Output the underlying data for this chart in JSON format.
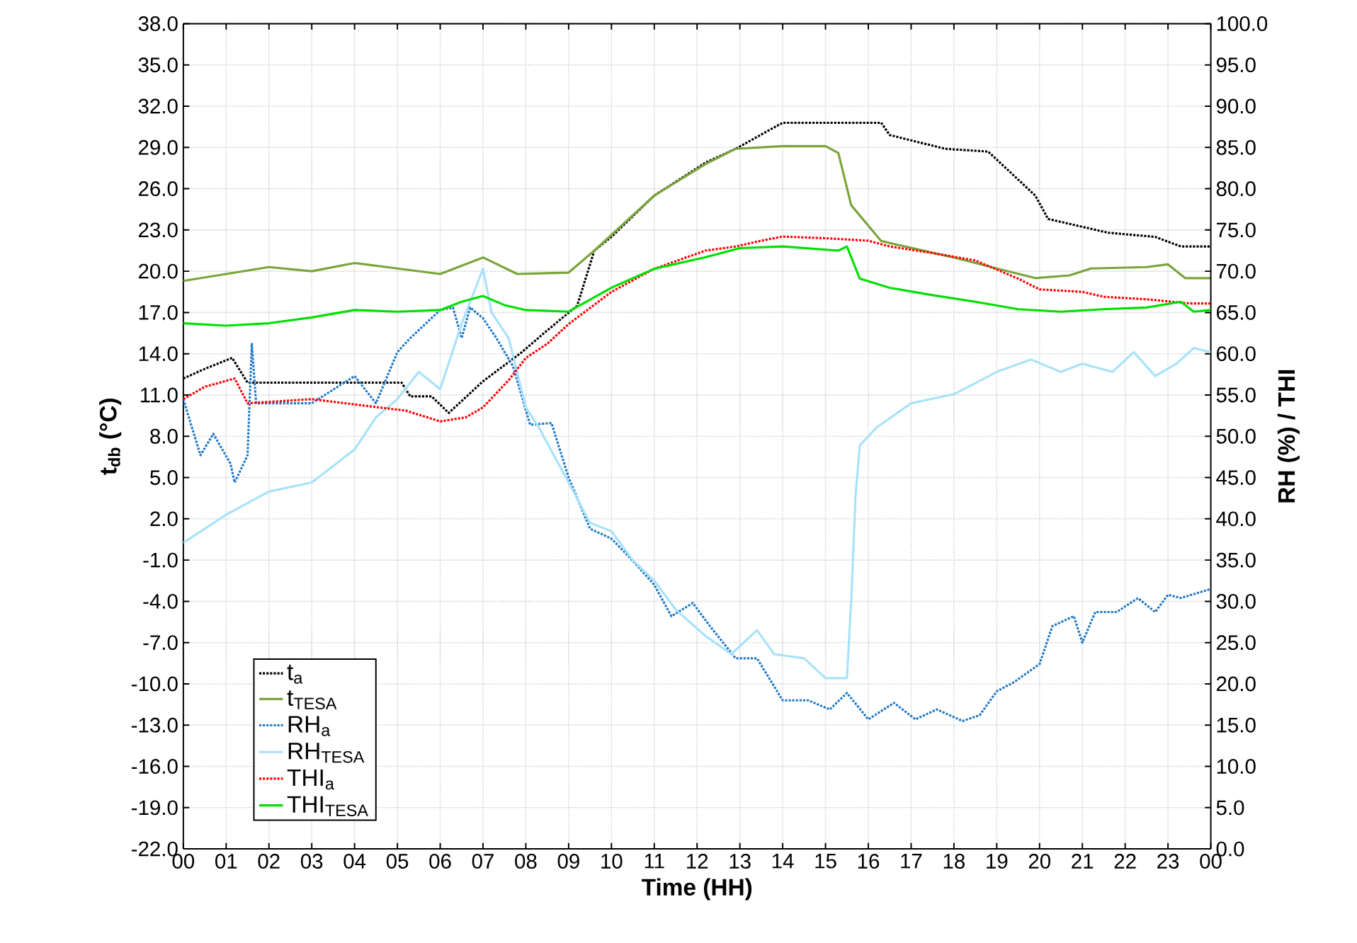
{
  "chart_data": {
    "type": "line",
    "xlabel": "Time (HH)",
    "ylabel": "t$_{db}$ (°C)",
    "y2label": "RH (%) / THI",
    "xlim": [
      0,
      24
    ],
    "xticks": [
      {
        "value": 0,
        "label": "00"
      },
      {
        "value": 1,
        "label": "01"
      },
      {
        "value": 2,
        "label": "02"
      },
      {
        "value": 3,
        "label": "03"
      },
      {
        "value": 4,
        "label": "04"
      },
      {
        "value": 5,
        "label": "05"
      },
      {
        "value": 6,
        "label": "06"
      },
      {
        "value": 7,
        "label": "07"
      },
      {
        "value": 8,
        "label": "08"
      },
      {
        "value": 9,
        "label": "09"
      },
      {
        "value": 10,
        "label": "10"
      },
      {
        "value": 11,
        "label": "11"
      },
      {
        "value": 12,
        "label": "12"
      },
      {
        "value": 13,
        "label": "13"
      },
      {
        "value": 14,
        "label": "14"
      },
      {
        "value": 15,
        "label": "15"
      },
      {
        "value": 16,
        "label": "16"
      },
      {
        "value": 17,
        "label": "17"
      },
      {
        "value": 18,
        "label": "18"
      },
      {
        "value": 19,
        "label": "19"
      },
      {
        "value": 20,
        "label": "20"
      },
      {
        "value": 21,
        "label": "21"
      },
      {
        "value": 22,
        "label": "22"
      },
      {
        "value": 23,
        "label": "23"
      },
      {
        "value": 24,
        "label": "00"
      }
    ],
    "ylim": [
      -22,
      38
    ],
    "yticks": [
      {
        "value": -22,
        "label": "-22.0"
      },
      {
        "value": -19,
        "label": "-19.0"
      },
      {
        "value": -16,
        "label": "-16.0"
      },
      {
        "value": -13,
        "label": "-13.0"
      },
      {
        "value": -10,
        "label": "-10.0"
      },
      {
        "value": -7,
        "label": "-7.0"
      },
      {
        "value": -4,
        "label": "-4.0"
      },
      {
        "value": -1,
        "label": "-1.0"
      },
      {
        "value": 2,
        "label": "2.0"
      },
      {
        "value": 5,
        "label": "5.0"
      },
      {
        "value": 8,
        "label": "8.0"
      },
      {
        "value": 11,
        "label": "11.0"
      },
      {
        "value": 14,
        "label": "14.0"
      },
      {
        "value": 17,
        "label": "17.0"
      },
      {
        "value": 20,
        "label": "20.0"
      },
      {
        "value": 23,
        "label": "23.0"
      },
      {
        "value": 26,
        "label": "26.0"
      },
      {
        "value": 29,
        "label": "29.0"
      },
      {
        "value": 32,
        "label": "32.0"
      },
      {
        "value": 35,
        "label": "35.0"
      },
      {
        "value": 38,
        "label": "38.0"
      }
    ],
    "y2lim": [
      0,
      100
    ],
    "y2ticks": [
      {
        "value": 0,
        "label": "0.0"
      },
      {
        "value": 5,
        "label": "5.0"
      },
      {
        "value": 10,
        "label": "10.0"
      },
      {
        "value": 15,
        "label": "15.0"
      },
      {
        "value": 20,
        "label": "20.0"
      },
      {
        "value": 25,
        "label": "25.0"
      },
      {
        "value": 30,
        "label": "30.0"
      },
      {
        "value": 35,
        "label": "35.0"
      },
      {
        "value": 40,
        "label": "40.0"
      },
      {
        "value": 45,
        "label": "45.0"
      },
      {
        "value": 50,
        "label": "50.0"
      },
      {
        "value": 55,
        "label": "55.0"
      },
      {
        "value": 60,
        "label": "60.0"
      },
      {
        "value": 65,
        "label": "65.0"
      },
      {
        "value": 70,
        "label": "70.0"
      },
      {
        "value": 75,
        "label": "75.0"
      },
      {
        "value": 80,
        "label": "80.0"
      },
      {
        "value": 85,
        "label": "85.0"
      },
      {
        "value": 90,
        "label": "90.0"
      },
      {
        "value": 95,
        "label": "95.0"
      },
      {
        "value": 100,
        "label": "100.0"
      }
    ],
    "grid": true,
    "legend": "bottom left",
    "marker": "none",
    "series": [
      {
        "name": "t$_{a}$",
        "color": "#000000",
        "line_style": "dotted",
        "x": [
          0,
          0.5,
          1.14,
          1.5,
          3,
          5.1,
          5.3,
          5.8,
          6.2,
          7.0,
          7.9,
          8.5,
          9.2,
          9.6,
          10,
          11,
          12.2,
          12.9,
          14,
          15.2,
          16.3,
          16.5,
          17.8,
          18.8,
          19.9,
          20.2,
          21.6,
          22.7,
          23.3,
          24
        ],
        "values": [
          12.2,
          12.9,
          13.7,
          11.9,
          11.9,
          11.9,
          10.9,
          10.9,
          9.7,
          12.0,
          14.1,
          15.7,
          17.5,
          21.5,
          22.5,
          25.5,
          27.9,
          28.9,
          30.8,
          30.8,
          30.8,
          29.9,
          28.9,
          28.7,
          25.5,
          23.8,
          22.8,
          22.5,
          21.8,
          21.8
        ]
      },
      {
        "name": "t$_{TESA}$",
        "color": "#7aa53a",
        "line_style": "solid",
        "x": [
          0,
          1,
          2,
          3,
          4,
          5,
          6,
          7,
          7.8,
          9,
          9.6,
          11,
          12.2,
          12.9,
          14,
          15,
          15.3,
          15.6,
          16.3,
          17,
          18,
          19,
          19.9,
          20.7,
          21.2,
          22.5,
          23,
          23.4,
          24
        ],
        "values": [
          19.3,
          19.8,
          20.3,
          20.0,
          20.6,
          20.2,
          19.8,
          21.0,
          19.8,
          19.9,
          21.5,
          25.5,
          27.8,
          28.9,
          29.1,
          29.1,
          28.6,
          24.8,
          22.2,
          21.7,
          21.0,
          20.2,
          19.5,
          19.7,
          20.2,
          20.3,
          20.5,
          19.5,
          19.5
        ]
      },
      {
        "name": "RH$_{a}$",
        "color": "#1f78c8",
        "line_style": "dotted",
        "axis": "y2",
        "x": [
          0,
          0.4,
          0.7,
          1.1,
          1.2,
          1.5,
          1.6,
          1.7,
          3,
          4,
          4.5,
          5,
          5.3,
          6,
          6.3,
          6.5,
          6.7,
          7.0,
          7.3,
          7.7,
          8.1,
          8.6,
          9,
          9.5,
          10,
          10.5,
          11,
          11.4,
          11.9,
          12.3,
          12.9,
          13.4,
          14,
          14.6,
          15.1,
          15.5,
          16,
          16.6,
          17.1,
          17.6,
          18.2,
          18.6,
          19,
          19.4,
          20,
          20.3,
          20.8,
          21,
          21.3,
          21.8,
          22.3,
          22.7,
          23,
          23.3,
          24
        ],
        "values": [
          54.5,
          47.7,
          50.3,
          46.7,
          44.4,
          47.7,
          61.2,
          54.0,
          54.0,
          57.3,
          54.0,
          60.2,
          61.9,
          65.3,
          65.6,
          61.9,
          65.6,
          64.3,
          62.0,
          58.5,
          51.4,
          51.6,
          45.0,
          38.8,
          37.6,
          34.9,
          32.0,
          28.2,
          29.8,
          27.0,
          23.1,
          23.1,
          18.0,
          18.0,
          16.9,
          18.9,
          15.7,
          17.7,
          15.7,
          16.9,
          15.5,
          16.2,
          19.1,
          20.2,
          22.4,
          27.0,
          28.2,
          25.0,
          28.7,
          28.7,
          30.4,
          28.7,
          30.8,
          30.4,
          31.5
        ]
      },
      {
        "name": "RH$_{TESA}$",
        "color": "#a8e2fa",
        "line_style": "solid",
        "axis": "y2",
        "x": [
          0,
          0.5,
          1,
          2,
          3,
          4,
          4.5,
          5,
          5.5,
          6,
          6.5,
          7,
          7.2,
          7.6,
          8,
          8.3,
          9,
          9.5,
          10,
          10.5,
          11,
          11.5,
          12.2,
          12.8,
          13.4,
          13.8,
          14.5,
          15,
          15.5,
          15.6,
          15.7,
          15.8,
          16.2,
          17,
          18,
          19,
          19.8,
          20.5,
          21,
          21.7,
          22.2,
          22.7,
          23.2,
          23.6,
          24
        ],
        "values": [
          37.1,
          38.8,
          40.5,
          43.3,
          44.4,
          48.4,
          52.3,
          54.5,
          57.8,
          55.7,
          63.6,
          70.3,
          65.0,
          61.9,
          53.5,
          51.1,
          44.4,
          39.5,
          38.5,
          35.0,
          32.5,
          29.0,
          25.8,
          23.6,
          26.5,
          23.6,
          23.1,
          20.7,
          20.7,
          30.0,
          42.6,
          48.9,
          51.1,
          54.0,
          55.1,
          57.8,
          59.3,
          57.8,
          58.8,
          57.8,
          60.2,
          57.3,
          58.8,
          60.7,
          60.2
        ]
      },
      {
        "name": "THI$_{a}$",
        "color": "#ff0000",
        "line_style": "dotted",
        "axis": "y2",
        "x": [
          0,
          0.5,
          1.2,
          1.5,
          3,
          5.2,
          6,
          6.6,
          7,
          7.6,
          8,
          8.5,
          9,
          10,
          11,
          12.2,
          12.9,
          13.5,
          14,
          15,
          16,
          16.5,
          17.5,
          18.5,
          19.5,
          20,
          21,
          21.5,
          22.5,
          23.5,
          24
        ],
        "values": [
          54.5,
          56.0,
          57.0,
          54.0,
          54.5,
          53.1,
          51.8,
          52.3,
          53.5,
          56.8,
          59.5,
          61.2,
          63.6,
          67.5,
          70.3,
          72.5,
          73.0,
          73.7,
          74.2,
          74.0,
          73.7,
          73.0,
          72.2,
          71.3,
          69.1,
          67.8,
          67.5,
          66.9,
          66.6,
          66.1,
          66.1
        ]
      },
      {
        "name": "THI$_{TESA}$",
        "color": "#00e000",
        "line_style": "solid",
        "axis": "y2",
        "x": [
          0,
          1,
          2,
          3,
          4,
          5,
          6,
          6.5,
          7,
          7.5,
          8,
          9,
          10,
          11,
          12.2,
          13,
          14,
          15.3,
          15.5,
          15.8,
          16.5,
          17.5,
          18.5,
          19.5,
          20.5,
          21.5,
          22.5,
          23.3,
          23.6,
          24
        ],
        "values": [
          63.7,
          63.4,
          63.7,
          64.4,
          65.3,
          65.1,
          65.3,
          66.3,
          67.0,
          65.9,
          65.3,
          65.1,
          68.0,
          70.3,
          71.7,
          72.8,
          73.0,
          72.5,
          73.0,
          69.1,
          68.0,
          67.1,
          66.3,
          65.4,
          65.1,
          65.4,
          65.6,
          66.3,
          65.1,
          65.3
        ]
      }
    ]
  }
}
